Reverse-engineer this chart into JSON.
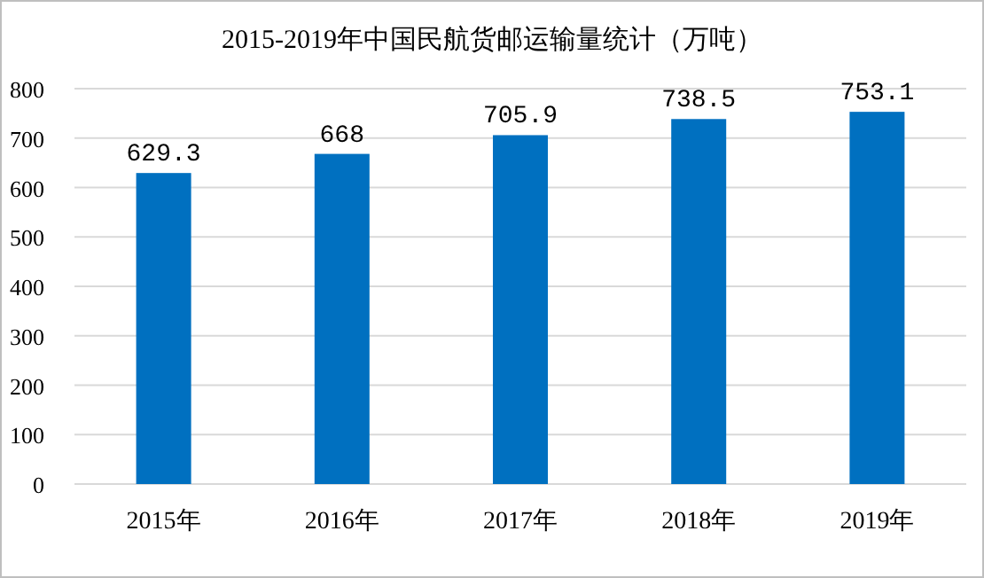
{
  "chart_data": {
    "type": "bar",
    "title": "2015-2019年中国民航货邮运输量统计（万吨）",
    "categories": [
      "2015年",
      "2016年",
      "2017年",
      "2018年",
      "2019年"
    ],
    "values": [
      629.3,
      668,
      705.9,
      738.5,
      753.1
    ],
    "color": "#0070c0",
    "ylim": [
      0,
      800
    ],
    "yticks": [
      0,
      100,
      200,
      300,
      400,
      500,
      600,
      700,
      800
    ],
    "grid": "y",
    "data_labels": true
  }
}
